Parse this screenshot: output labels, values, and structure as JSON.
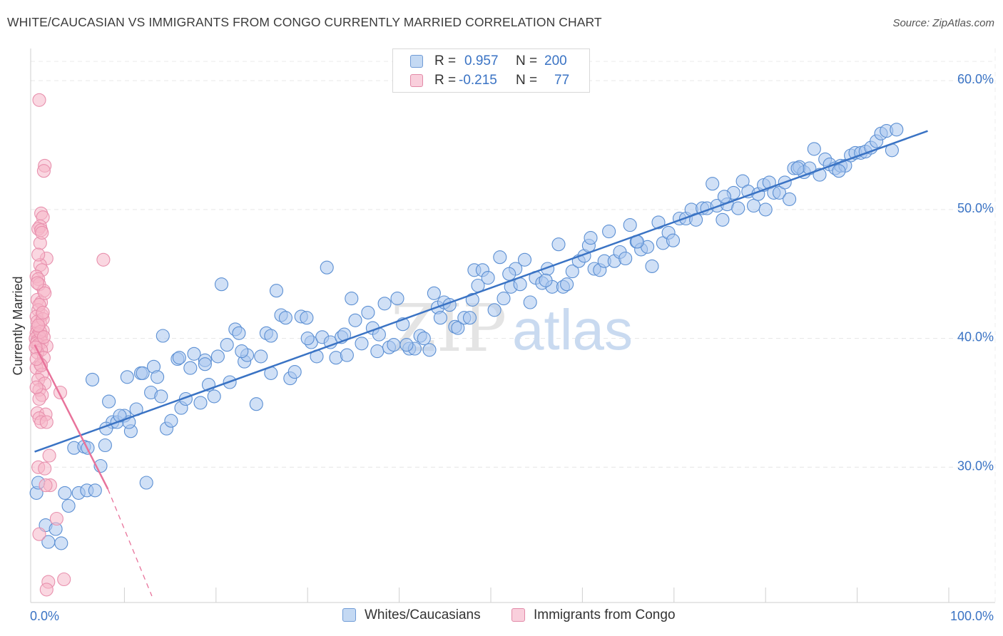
{
  "title": "WHITE/CAUCASIAN VS IMMIGRANTS FROM CONGO CURRENTLY MARRIED CORRELATION CHART",
  "source": "Source: ZipAtlas.com",
  "watermark": {
    "zip": "ZIP",
    "atlas": "atlas"
  },
  "legend": {
    "rows": [
      {
        "r_label": "R =",
        "r_value": "0.957",
        "n_label": "N =",
        "n_value": "200",
        "color": "#a9c7ee"
      },
      {
        "r_label": "R =",
        "r_value": "-0.215",
        "n_label": "N =",
        "n_value": "77",
        "color": "#f5b6c9"
      }
    ]
  },
  "bottom_legend": [
    {
      "label": "Whites/Caucasians",
      "color": "#a9c7ee"
    },
    {
      "label": "Immigrants from Congo",
      "color": "#f5b6c9"
    }
  ],
  "colors": {
    "blue": "#3a73c4",
    "blue_fill": "#a9c7ee",
    "pink": "#e8739b",
    "pink_fill": "#f5b6c9",
    "axis_label": "#3a73c4"
  },
  "chart_data": {
    "type": "scatter",
    "title": "WHITE/CAUCASIAN VS IMMIGRANTS FROM CONGO CURRENTLY MARRIED CORRELATION CHART",
    "xlabel": "",
    "ylabel": "Currently Married",
    "xlim": [
      0,
      100
    ],
    "ylim": [
      19.5,
      62.5
    ],
    "x_tick_labels": [
      {
        "value": 0,
        "label": "0.0%"
      },
      {
        "value": 100,
        "label": "100.0%"
      }
    ],
    "y_tick_labels": [
      {
        "value": 30,
        "label": "30.0%"
      },
      {
        "value": 40,
        "label": "40.0%"
      },
      {
        "value": 50,
        "label": "50.0%"
      },
      {
        "value": 60,
        "label": "60.0%"
      }
    ],
    "x_minor_ticks": [
      10,
      20,
      30,
      40,
      50,
      60,
      70,
      80,
      90,
      100
    ],
    "grid": true,
    "series": [
      {
        "name": "Whites/Caucasians",
        "R": 0.957,
        "N": 200,
        "trend": {
          "x": [
            0.2,
            97.7
          ],
          "y": [
            31.2,
            56.1
          ],
          "style": "solid"
        },
        "points": [
          [
            0.4,
            28.0
          ],
          [
            0.6,
            28.8
          ],
          [
            1.4,
            25.5
          ],
          [
            1.7,
            24.2
          ],
          [
            2.5,
            25.2
          ],
          [
            3.1,
            24.1
          ],
          [
            3.5,
            28.0
          ],
          [
            3.9,
            27.0
          ],
          [
            4.5,
            31.5
          ],
          [
            5.0,
            28.0
          ],
          [
            5.6,
            31.6
          ],
          [
            5.9,
            28.2
          ],
          [
            6.5,
            36.8
          ],
          [
            6.8,
            28.2
          ],
          [
            7.4,
            30.1
          ],
          [
            7.9,
            31.7
          ],
          [
            8.3,
            35.1
          ],
          [
            8.7,
            33.5
          ],
          [
            9.2,
            33.5
          ],
          [
            10.0,
            34.0
          ],
          [
            10.3,
            37.0
          ],
          [
            10.7,
            32.8
          ],
          [
            11.3,
            34.5
          ],
          [
            11.8,
            37.3
          ],
          [
            12.4,
            28.8
          ],
          [
            12.9,
            35.8
          ],
          [
            13.2,
            37.8
          ],
          [
            13.6,
            37.0
          ],
          [
            14.2,
            40.2
          ],
          [
            14.6,
            33.0
          ],
          [
            15.1,
            33.6
          ],
          [
            15.8,
            38.4
          ],
          [
            16.2,
            34.6
          ],
          [
            16.7,
            35.3
          ],
          [
            17.2,
            37.7
          ],
          [
            17.6,
            38.8
          ],
          [
            18.3,
            35.0
          ],
          [
            18.8,
            38.3
          ],
          [
            19.2,
            36.4
          ],
          [
            19.8,
            35.5
          ],
          [
            20.2,
            38.6
          ],
          [
            20.6,
            44.2
          ],
          [
            21.2,
            39.5
          ],
          [
            21.5,
            36.6
          ],
          [
            22.1,
            40.7
          ],
          [
            22.5,
            40.4
          ],
          [
            23.1,
            38.2
          ],
          [
            23.4,
            38.7
          ],
          [
            24.4,
            34.9
          ],
          [
            24.9,
            38.6
          ],
          [
            25.5,
            40.4
          ],
          [
            26.0,
            37.3
          ],
          [
            26.6,
            43.7
          ],
          [
            27.1,
            41.8
          ],
          [
            27.6,
            41.6
          ],
          [
            28.1,
            36.9
          ],
          [
            28.6,
            37.4
          ],
          [
            29.3,
            41.7
          ],
          [
            29.9,
            41.6
          ],
          [
            30.4,
            39.7
          ],
          [
            31.0,
            38.6
          ],
          [
            31.6,
            40.1
          ],
          [
            32.1,
            45.5
          ],
          [
            32.5,
            39.7
          ],
          [
            33.1,
            38.5
          ],
          [
            33.7,
            40.1
          ],
          [
            34.3,
            38.7
          ],
          [
            34.8,
            43.1
          ],
          [
            35.2,
            41.4
          ],
          [
            35.9,
            39.6
          ],
          [
            36.6,
            42.0
          ],
          [
            37.1,
            40.8
          ],
          [
            37.6,
            39.0
          ],
          [
            38.4,
            42.7
          ],
          [
            38.9,
            39.3
          ],
          [
            39.4,
            39.5
          ],
          [
            39.8,
            43.1
          ],
          [
            40.4,
            41.1
          ],
          [
            41.1,
            39.2
          ],
          [
            41.7,
            39.2
          ],
          [
            42.3,
            40.2
          ],
          [
            42.7,
            40.0
          ],
          [
            43.3,
            39.1
          ],
          [
            43.8,
            43.5
          ],
          [
            44.2,
            42.4
          ],
          [
            44.9,
            42.8
          ],
          [
            45.5,
            42.6
          ],
          [
            46.1,
            40.9
          ],
          [
            46.4,
            40.8
          ],
          [
            47.1,
            41.6
          ],
          [
            47.7,
            41.6
          ],
          [
            48.2,
            45.3
          ],
          [
            48.6,
            44.1
          ],
          [
            49.1,
            45.3
          ],
          [
            49.7,
            44.7
          ],
          [
            50.4,
            42.2
          ],
          [
            51.0,
            46.3
          ],
          [
            51.4,
            43.1
          ],
          [
            52.2,
            44.0
          ],
          [
            52.7,
            45.4
          ],
          [
            53.2,
            44.2
          ],
          [
            53.7,
            46.1
          ],
          [
            54.3,
            42.8
          ],
          [
            54.9,
            44.7
          ],
          [
            55.6,
            44.3
          ],
          [
            56.2,
            45.4
          ],
          [
            56.7,
            44.0
          ],
          [
            57.4,
            47.3
          ],
          [
            57.9,
            44.0
          ],
          [
            58.3,
            44.2
          ],
          [
            58.9,
            45.2
          ],
          [
            59.6,
            46.0
          ],
          [
            60.2,
            46.4
          ],
          [
            60.7,
            47.2
          ],
          [
            61.3,
            45.4
          ],
          [
            61.9,
            45.3
          ],
          [
            62.4,
            46.0
          ],
          [
            62.9,
            48.3
          ],
          [
            63.5,
            46.0
          ],
          [
            64.1,
            46.7
          ],
          [
            64.7,
            46.2
          ],
          [
            65.2,
            48.8
          ],
          [
            65.9,
            47.5
          ],
          [
            66.4,
            46.9
          ],
          [
            67.1,
            47.1
          ],
          [
            67.6,
            45.6
          ],
          [
            68.3,
            49.0
          ],
          [
            68.8,
            47.4
          ],
          [
            69.4,
            48.2
          ],
          [
            69.9,
            47.6
          ],
          [
            70.6,
            49.3
          ],
          [
            71.3,
            49.3
          ],
          [
            71.9,
            50.0
          ],
          [
            72.4,
            49.2
          ],
          [
            73.1,
            50.1
          ],
          [
            73.6,
            50.1
          ],
          [
            74.2,
            52.0
          ],
          [
            74.7,
            50.3
          ],
          [
            75.3,
            49.2
          ],
          [
            75.8,
            50.4
          ],
          [
            76.5,
            51.3
          ],
          [
            77.0,
            50.1
          ],
          [
            77.5,
            52.2
          ],
          [
            78.1,
            51.4
          ],
          [
            78.7,
            50.3
          ],
          [
            79.2,
            51.2
          ],
          [
            79.8,
            51.9
          ],
          [
            80.4,
            52.1
          ],
          [
            80.9,
            51.3
          ],
          [
            81.5,
            51.3
          ],
          [
            82.1,
            52.1
          ],
          [
            82.6,
            50.8
          ],
          [
            83.1,
            53.2
          ],
          [
            83.7,
            53.3
          ],
          [
            84.2,
            52.9
          ],
          [
            84.8,
            53.2
          ],
          [
            85.3,
            54.7
          ],
          [
            85.9,
            52.7
          ],
          [
            86.5,
            53.9
          ],
          [
            87.0,
            53.5
          ],
          [
            87.6,
            53.2
          ],
          [
            88.2,
            53.4
          ],
          [
            88.7,
            53.4
          ],
          [
            89.3,
            54.2
          ],
          [
            89.8,
            54.4
          ],
          [
            90.4,
            54.4
          ],
          [
            90.9,
            54.5
          ],
          [
            91.5,
            54.8
          ],
          [
            92.1,
            55.3
          ],
          [
            92.6,
            55.9
          ],
          [
            93.2,
            56.1
          ],
          [
            93.8,
            54.6
          ],
          [
            94.3,
            56.2
          ],
          [
            88.0,
            53.0
          ],
          [
            83.5,
            53.2
          ],
          [
            75.5,
            51.0
          ],
          [
            80.0,
            50.0
          ],
          [
            66.0,
            47.5
          ],
          [
            60.9,
            47.8
          ],
          [
            56.0,
            44.5
          ],
          [
            52.0,
            45.0
          ],
          [
            48.0,
            43.0
          ],
          [
            44.5,
            41.6
          ],
          [
            40.8,
            39.5
          ],
          [
            37.8,
            40.3
          ],
          [
            34.0,
            40.3
          ],
          [
            30.0,
            40.0
          ],
          [
            26.0,
            40.2
          ],
          [
            22.8,
            39.0
          ],
          [
            18.8,
            38.0
          ],
          [
            16.0,
            38.5
          ],
          [
            14.0,
            35.5
          ],
          [
            12.0,
            37.3
          ],
          [
            10.5,
            33.5
          ],
          [
            9.5,
            34.0
          ],
          [
            8.0,
            33.0
          ],
          [
            6.0,
            31.5
          ]
        ]
      },
      {
        "name": "Immigrants from Congo",
        "R": -0.215,
        "N": 77,
        "trend": {
          "x": [
            0.2,
            8.2
          ],
          "y": [
            39.5,
            28.3
          ],
          "style": "solid",
          "dashed_extension_to": [
            13.0,
            20.0
          ]
        },
        "points": [
          [
            0.7,
            58.5
          ],
          [
            1.3,
            53.4
          ],
          [
            1.2,
            53.0
          ],
          [
            0.9,
            49.7
          ],
          [
            1.1,
            49.4
          ],
          [
            0.8,
            48.7
          ],
          [
            0.6,
            48.5
          ],
          [
            0.9,
            48.4
          ],
          [
            0.8,
            47.4
          ],
          [
            1.5,
            46.2
          ],
          [
            7.7,
            46.1
          ],
          [
            0.8,
            45.7
          ],
          [
            1.0,
            45.3
          ],
          [
            0.4,
            44.8
          ],
          [
            0.6,
            44.6
          ],
          [
            0.7,
            44.2
          ],
          [
            1.2,
            43.7
          ],
          [
            0.5,
            43.0
          ],
          [
            0.9,
            42.8
          ],
          [
            0.6,
            42.2
          ],
          [
            1.0,
            41.8
          ],
          [
            0.4,
            41.7
          ],
          [
            0.8,
            41.2
          ],
          [
            0.5,
            40.8
          ],
          [
            1.1,
            40.6
          ],
          [
            0.4,
            40.4
          ],
          [
            0.6,
            40.3
          ],
          [
            0.9,
            40.2
          ],
          [
            0.3,
            40.0
          ],
          [
            0.8,
            40.0
          ],
          [
            0.5,
            39.8
          ],
          [
            1.0,
            39.7
          ],
          [
            0.4,
            39.6
          ],
          [
            0.6,
            39.5
          ],
          [
            1.5,
            39.4
          ],
          [
            0.9,
            39.1
          ],
          [
            0.5,
            38.9
          ],
          [
            1.2,
            38.5
          ],
          [
            0.8,
            38.0
          ],
          [
            0.4,
            37.7
          ],
          [
            1.0,
            37.2
          ],
          [
            0.6,
            36.8
          ],
          [
            1.3,
            36.5
          ],
          [
            0.7,
            36.0
          ],
          [
            3.0,
            35.8
          ],
          [
            1.0,
            35.6
          ],
          [
            0.5,
            34.2
          ],
          [
            1.4,
            34.1
          ],
          [
            0.7,
            33.8
          ],
          [
            0.9,
            33.5
          ],
          [
            1.5,
            33.5
          ],
          [
            1.8,
            30.9
          ],
          [
            0.6,
            30.0
          ],
          [
            1.3,
            29.9
          ],
          [
            1.9,
            28.6
          ],
          [
            1.4,
            28.6
          ],
          [
            2.6,
            26.0
          ],
          [
            0.7,
            24.8
          ],
          [
            1.7,
            21.1
          ],
          [
            1.5,
            20.5
          ],
          [
            3.4,
            21.3
          ],
          [
            0.5,
            41.3
          ],
          [
            0.7,
            42.6
          ],
          [
            1.1,
            41.5
          ],
          [
            0.3,
            39.3
          ],
          [
            0.9,
            37.9
          ],
          [
            0.4,
            38.4
          ],
          [
            1.3,
            43.5
          ],
          [
            0.6,
            46.5
          ],
          [
            1.0,
            48.2
          ],
          [
            0.5,
            44.3
          ],
          [
            0.8,
            40.5
          ],
          [
            1.2,
            40.1
          ],
          [
            0.7,
            35.3
          ],
          [
            0.4,
            36.2
          ],
          [
            1.1,
            42.0
          ],
          [
            0.6,
            41.0
          ]
        ]
      }
    ]
  }
}
